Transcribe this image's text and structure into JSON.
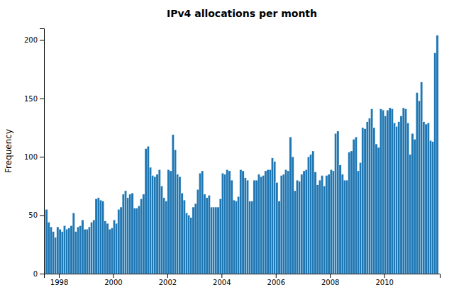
{
  "chart_data": {
    "type": "histogram",
    "title": "IPv4 allocations per month",
    "ylabel": "Frequency",
    "bins": [
      1997.5,
      1997.5833333333333,
      1997.6666666666667,
      1997.75,
      1997.8333333333333,
      1997.9166666666667,
      1998,
      1998.0833333333333,
      1998.1666666666667,
      1998.25,
      1998.3333333333333,
      1998.4166666666667,
      1998.5,
      1998.5833333333333,
      1998.6666666666667,
      1998.75,
      1998.8333333333333,
      1998.9166666666667,
      1999,
      1999.0833333333333,
      1999.1666666666667,
      1999.25,
      1999.3333333333333,
      1999.4166666666667,
      1999.5,
      1999.5833333333333,
      1999.6666666666667,
      1999.75,
      1999.8333333333333,
      1999.9166666666667,
      2000,
      2000.0833333333333,
      2000.1666666666667,
      2000.25,
      2000.3333333333333,
      2000.4166666666667,
      2000.5,
      2000.5833333333333,
      2000.6666666666667,
      2000.75,
      2000.8333333333333,
      2000.9166666666667,
      2001,
      2001.0833333333333,
      2001.1666666666667,
      2001.25,
      2001.3333333333333,
      2001.4166666666667,
      2001.5,
      2001.5833333333333,
      2001.6666666666667,
      2001.75,
      2001.8333333333333,
      2001.9166666666667,
      2002,
      2002.0833333333333,
      2002.1666666666667,
      2002.25,
      2002.3333333333333,
      2002.4166666666667,
      2002.5,
      2002.5833333333333,
      2002.6666666666667,
      2002.75,
      2002.8333333333333,
      2002.9166666666667,
      2003,
      2003.0833333333333,
      2003.1666666666667,
      2003.25,
      2003.3333333333333,
      2003.4166666666667,
      2003.5,
      2003.5833333333333,
      2003.6666666666667,
      2003.75,
      2003.8333333333333,
      2003.9166666666667,
      2004,
      2004.0833333333333,
      2004.1666666666667,
      2004.25,
      2004.3333333333333,
      2004.4166666666667,
      2004.5,
      2004.5833333333333,
      2004.6666666666667,
      2004.75,
      2004.8333333333333,
      2004.9166666666667,
      2005,
      2005.0833333333333,
      2005.1666666666667,
      2005.25,
      2005.3333333333333,
      2005.4166666666667,
      2005.5,
      2005.5833333333333,
      2005.6666666666667,
      2005.75,
      2005.8333333333333,
      2005.9166666666667,
      2006,
      2006.0833333333333,
      2006.1666666666667,
      2006.25,
      2006.3333333333333,
      2006.4166666666667,
      2006.5,
      2006.5833333333333,
      2006.6666666666667,
      2006.75,
      2006.8333333333333,
      2006.9166666666667,
      2007,
      2007.0833333333333,
      2007.1666666666667,
      2007.25,
      2007.3333333333333,
      2007.4166666666667,
      2007.5,
      2007.5833333333333,
      2007.6666666666667,
      2007.75,
      2007.8333333333333,
      2007.9166666666667,
      2008,
      2008.0833333333333,
      2008.1666666666667,
      2008.25,
      2008.3333333333333,
      2008.4166666666667,
      2008.5,
      2008.5833333333333,
      2008.6666666666667,
      2008.75,
      2008.8333333333333,
      2008.9166666666667,
      2009,
      2009.0833333333333,
      2009.1666666666667,
      2009.25,
      2009.3333333333333,
      2009.4166666666667,
      2009.5,
      2009.5833333333333,
      2009.6666666666667,
      2009.75,
      2009.8333333333333,
      2009.9166666666667,
      2010,
      2010.0833333333333,
      2010.1666666666667,
      2010.25,
      2010.3333333333333,
      2010.4166666666667,
      2010.5,
      2010.5833333333333,
      2010.6666666666667,
      2010.75,
      2010.8333333333333,
      2010.9166666666667,
      2011,
      2011.0833333333333,
      2011.1666666666667,
      2011.25,
      2011.3333333333333,
      2011.4166666666667,
      2011.5,
      2011.5833333333333,
      2011.6666666666667,
      2011.75,
      2011.8333333333333,
      2011.9166666666667,
      2012
    ],
    "values": [
      55,
      44,
      40,
      36,
      31,
      40,
      38,
      36,
      41,
      38,
      39,
      41,
      52,
      36,
      40,
      41,
      46,
      38,
      38,
      40,
      44,
      46,
      64,
      65,
      63,
      62,
      45,
      43,
      38,
      39,
      46,
      43,
      55,
      57,
      68,
      71,
      65,
      68,
      69,
      56,
      56,
      58,
      64,
      68,
      107,
      109,
      91,
      84,
      83,
      85,
      89,
      75,
      65,
      62,
      89,
      88,
      119,
      106,
      85,
      83,
      69,
      63,
      52,
      50,
      48,
      57,
      60,
      72,
      86,
      88,
      68,
      65,
      67,
      57,
      57,
      57,
      57,
      64,
      86,
      85,
      89,
      88,
      80,
      63,
      62,
      66,
      89,
      88,
      82,
      80,
      62,
      62,
      80,
      80,
      85,
      83,
      84,
      88,
      89,
      89,
      99,
      96,
      78,
      62,
      84,
      85,
      89,
      88,
      117,
      100,
      71,
      80,
      79,
      85,
      88,
      89,
      100,
      102,
      105,
      87,
      76,
      80,
      84,
      75,
      84,
      85,
      89,
      88,
      120,
      122,
      93,
      85,
      80,
      80,
      104,
      105,
      115,
      117,
      88,
      95,
      125,
      124,
      130,
      133,
      141,
      125,
      111,
      108,
      141,
      140,
      135,
      140,
      142,
      141,
      129,
      126,
      130,
      135,
      142,
      141,
      129,
      102,
      120,
      115,
      155,
      148,
      164,
      130,
      128,
      129,
      114,
      113,
      189,
      204
    ],
    "xlim": [
      1997.45,
      2012.05
    ],
    "xticks": [
      1998,
      2000,
      2002,
      2004,
      2006,
      2008,
      2010
    ],
    "ylim": [
      0,
      210
    ],
    "yticks": [
      0,
      50,
      100,
      150,
      200
    ],
    "grid": false
  }
}
